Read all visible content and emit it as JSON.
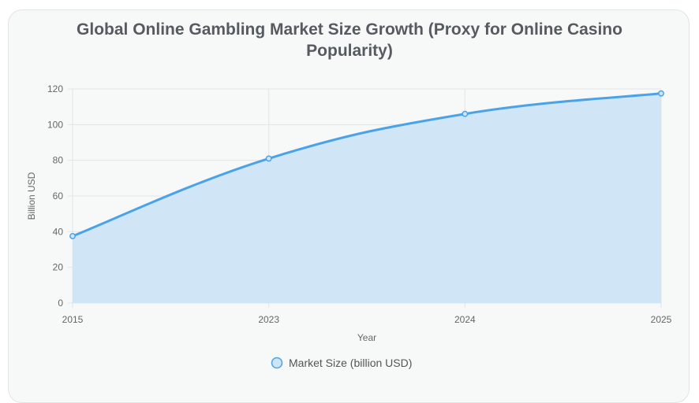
{
  "chart_data": {
    "type": "area",
    "title_lines": [
      "Global Online Gambling Market Size Growth (Proxy for Online Casino",
      "Popularity)"
    ],
    "categories": [
      "2015",
      "2023",
      "2024",
      "2025"
    ],
    "series": [
      {
        "name": "Market Size (billion USD)",
        "values": [
          37.5,
          81,
          106,
          117.5
        ]
      }
    ],
    "xlabel": "Year",
    "ylabel": "Billion USD",
    "ylim": [
      0,
      120
    ],
    "yticks": [
      "0",
      "20",
      "40",
      "60",
      "80",
      "100",
      "120"
    ],
    "grid": true,
    "legend_position": "bottom",
    "colors": {
      "line": "#4aa3e8",
      "fill": "#d0e5f5",
      "grid": "#e3e5e7",
      "point_fill": "#cfe5f6"
    }
  }
}
